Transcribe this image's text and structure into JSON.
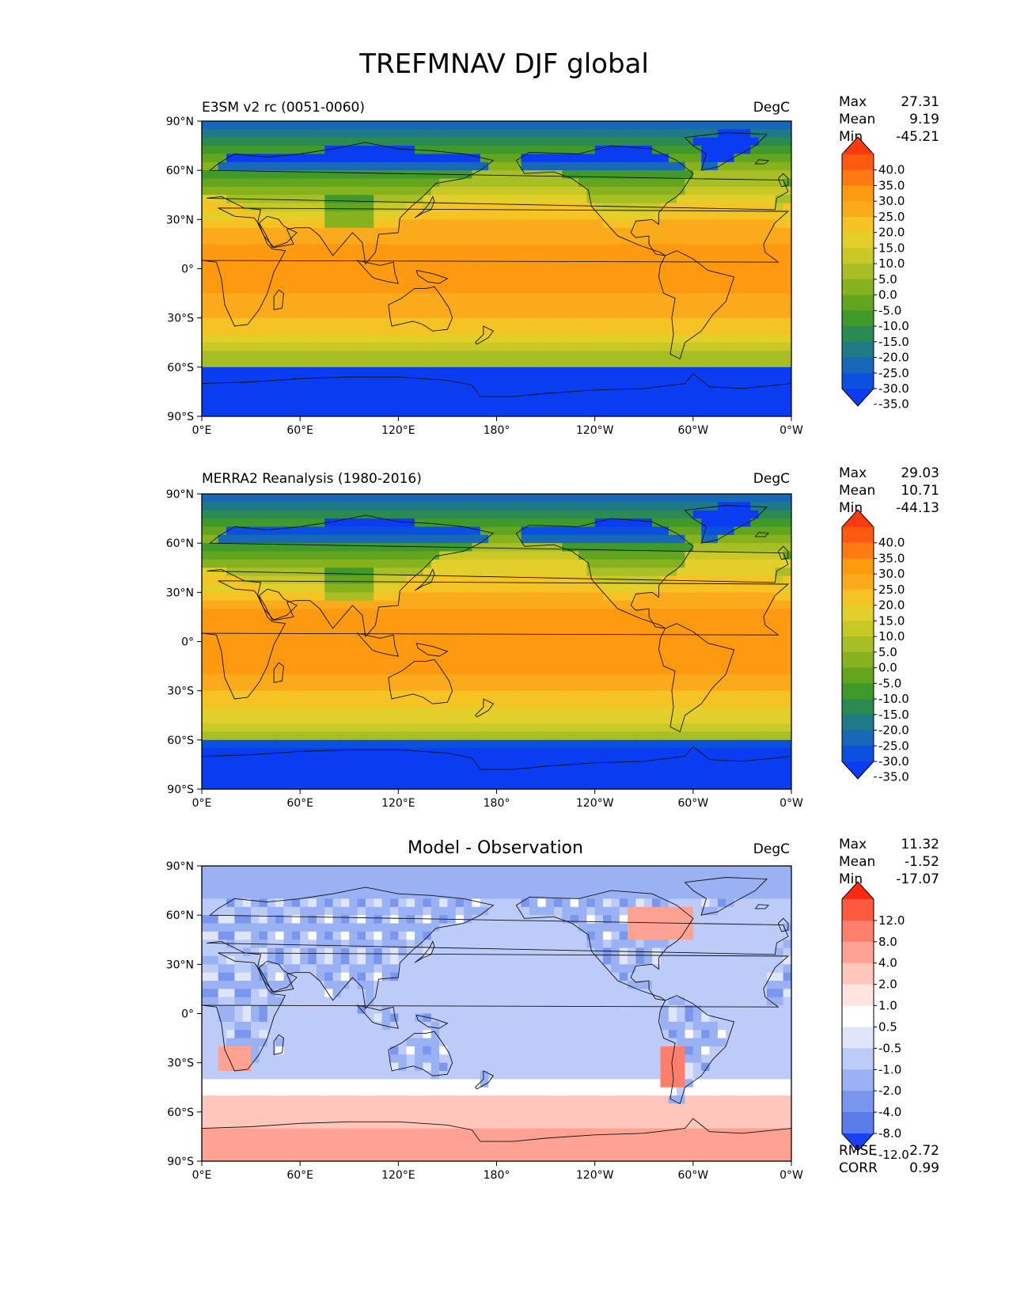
{
  "figure": {
    "title": "TREFMNAV DJF global"
  },
  "axes": {
    "lat_ticks": [
      "90°N",
      "60°N",
      "30°N",
      "0°",
      "30°S",
      "60°S",
      "90°S"
    ],
    "lon_ticks": [
      "0°E",
      "60°E",
      "120°E",
      "180°",
      "120°W",
      "60°W",
      "0°W"
    ]
  },
  "panels": [
    {
      "title": "E3SM v2 rc (0051-0060)",
      "units": "DegC",
      "stats": {
        "max_label": "Max",
        "max": "27.31",
        "mean_label": "Mean",
        "mean": "9.19",
        "min_label": "Min",
        "min": "-45.21"
      },
      "colorbar": {
        "levels": [
          "40.0",
          "35.0",
          "30.0",
          "25.0",
          "20.0",
          "15.0",
          "10.0",
          "5.0",
          "0.0",
          "-5.0",
          "-10.0",
          "-15.0",
          "-20.0",
          "-25.0",
          "-30.0",
          "-35.0"
        ],
        "colors": [
          "#ff3a10",
          "#ff5a10",
          "#ff7a10",
          "#ff9a10",
          "#fbaa1c",
          "#f6c324",
          "#e2cf2a",
          "#c8c926",
          "#a7bf24",
          "#86b21e",
          "#63a51e",
          "#3f9a2a",
          "#2b8a52",
          "#1f7a88",
          "#1769b8",
          "#0c50e0",
          "#0a3df2"
        ]
      },
      "map": {
        "field": "model"
      }
    },
    {
      "title": "MERRA2 Reanalysis (1980-2016)",
      "units": "DegC",
      "stats": {
        "max_label": "Max",
        "max": "29.03",
        "mean_label": "Mean",
        "mean": "10.71",
        "min_label": "Min",
        "min": "-44.13"
      },
      "colorbar": {
        "levels": [
          "40.0",
          "35.0",
          "30.0",
          "25.0",
          "20.0",
          "15.0",
          "10.0",
          "5.0",
          "0.0",
          "-5.0",
          "-10.0",
          "-15.0",
          "-20.0",
          "-25.0",
          "-30.0",
          "-35.0"
        ],
        "colors": [
          "#ff3a10",
          "#ff5a10",
          "#ff7a10",
          "#ff9a10",
          "#fbaa1c",
          "#f6c324",
          "#e2cf2a",
          "#c8c926",
          "#a7bf24",
          "#86b21e",
          "#63a51e",
          "#3f9a2a",
          "#2b8a52",
          "#1f7a88",
          "#1769b8",
          "#0c50e0",
          "#0a3df2"
        ]
      },
      "map": {
        "field": "obs"
      }
    },
    {
      "title": "Model - Observation",
      "units": "DegC",
      "stats": {
        "max_label": "Max",
        "max": "11.32",
        "mean_label": "Mean",
        "mean": "-1.52",
        "min_label": "Min",
        "min": "-17.07"
      },
      "colorbar": {
        "levels": [
          "12.0",
          "8.0",
          "4.0",
          "2.0",
          "1.0",
          "0.5",
          "-0.5",
          "-1.0",
          "-2.0",
          "-4.0",
          "-8.0",
          "-12.0"
        ],
        "colors": [
          "#ff2a10",
          "#ff5a40",
          "#ff7f6a",
          "#ffa294",
          "#ffc6bc",
          "#ffe4e0",
          "#ffffff",
          "#dfe6fb",
          "#bccbf7",
          "#9ab1f3",
          "#7a96ee",
          "#5a7bea",
          "#1a40f5"
        ]
      },
      "map": {
        "field": "diff"
      },
      "extra_stats": {
        "rmse_label": "RMSE",
        "rmse": "2.72",
        "corr_label": "CORR",
        "corr": "0.99"
      }
    }
  ]
}
